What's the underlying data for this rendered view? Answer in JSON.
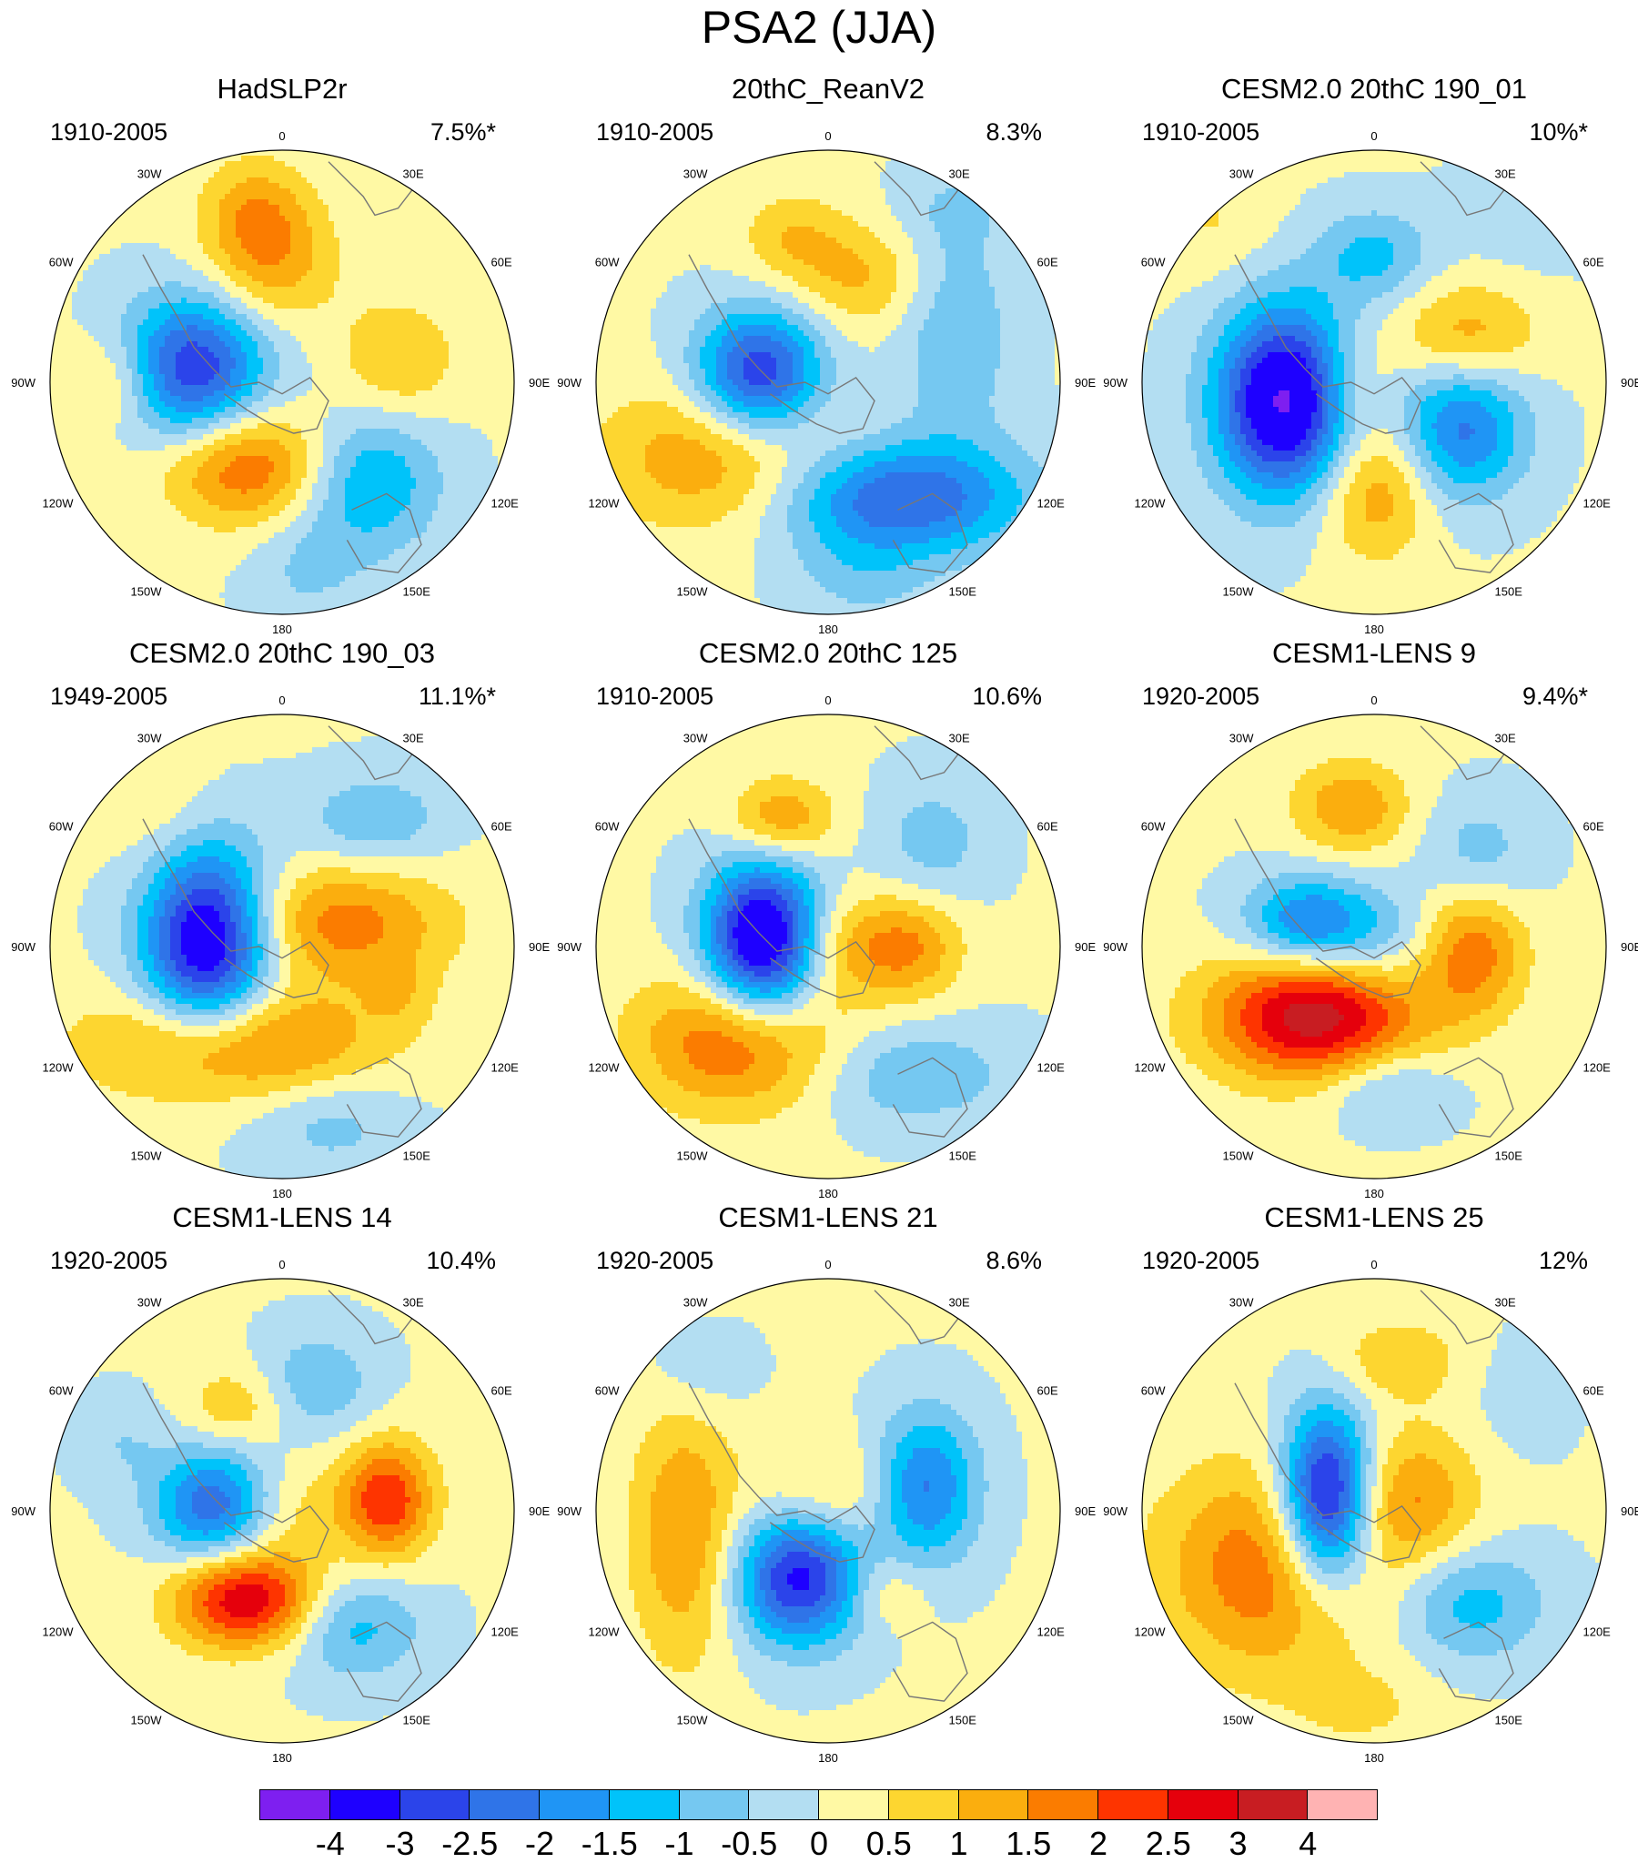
{
  "figure": {
    "title": "PSA2 (JJA)"
  },
  "longitude_labels": [
    "0",
    "30E",
    "60E",
    "90E",
    "120E",
    "150E",
    "180",
    "150W",
    "120W",
    "90W",
    "60W",
    "30W"
  ],
  "panels": [
    {
      "title": "HadSLP2r",
      "period": "1910-2005",
      "percent": "7.5%*",
      "blobs": [
        [
          -0.05,
          -0.52,
          0.55,
          0.55,
          1.3
        ],
        [
          -0.12,
          -0.75,
          0.45,
          0.45,
          1.0
        ],
        [
          -0.38,
          -0.06,
          0.62,
          0.62,
          -3.0
        ],
        [
          -0.15,
          0.36,
          0.7,
          0.5,
          2.0
        ],
        [
          0.38,
          0.43,
          0.6,
          0.6,
          -1.6
        ],
        [
          0.5,
          -0.1,
          0.5,
          0.5,
          1.0
        ],
        [
          -0.72,
          0.0,
          0.4,
          0.4,
          0.9
        ],
        [
          0.1,
          0.8,
          0.5,
          0.5,
          -0.6
        ]
      ]
    },
    {
      "title": "20thC_ReanV2",
      "period": "1910-2005",
      "percent": "8.3%",
      "blobs": [
        [
          -0.3,
          -0.03,
          0.55,
          0.55,
          -3.2
        ],
        [
          -0.45,
          0.32,
          1.0,
          0.65,
          1.6
        ],
        [
          0.3,
          0.5,
          1.1,
          0.5,
          -2.6
        ],
        [
          0.55,
          -0.2,
          0.5,
          0.9,
          -1.0
        ],
        [
          0.15,
          -0.45,
          0.55,
          0.45,
          1.0
        ],
        [
          -0.15,
          -0.62,
          0.45,
          0.4,
          0.9
        ],
        [
          0.15,
          0.85,
          0.6,
          0.4,
          -0.6
        ],
        [
          0.55,
          -0.75,
          0.5,
          0.4,
          -0.5
        ]
      ]
    },
    {
      "title": "CESM2.0 20thC 190_01",
      "period": "1910-2005",
      "percent": "10%*",
      "blobs": [
        [
          -0.38,
          0.08,
          0.6,
          0.8,
          -4.2
        ],
        [
          0.38,
          0.2,
          0.55,
          0.6,
          -2.2
        ],
        [
          0.0,
          -0.55,
          0.5,
          0.4,
          -1.2
        ],
        [
          0.4,
          -0.2,
          0.6,
          0.45,
          1.3
        ],
        [
          0.0,
          0.45,
          0.5,
          0.6,
          1.5
        ],
        [
          -0.1,
          0.0,
          0.35,
          0.45,
          0.9
        ],
        [
          0.7,
          -0.75,
          0.6,
          0.5,
          -0.5
        ],
        [
          -0.7,
          -0.7,
          0.5,
          0.5,
          0.5
        ]
      ]
    },
    {
      "title": "CESM2.0 20thC 190_03",
      "period": "1949-2005",
      "percent": "11.1%*",
      "blobs": [
        [
          -0.32,
          -0.02,
          0.55,
          0.8,
          -4.0
        ],
        [
          -0.2,
          0.42,
          1.2,
          0.5,
          2.0
        ],
        [
          0.25,
          -0.1,
          0.95,
          0.5,
          1.7
        ],
        [
          0.4,
          -0.55,
          0.6,
          0.4,
          -1.0
        ],
        [
          0.2,
          0.75,
          0.7,
          0.45,
          -0.8
        ],
        [
          -0.55,
          -0.6,
          0.5,
          0.5,
          0.5
        ],
        [
          0.5,
          0.2,
          0.3,
          0.3,
          0.6
        ]
      ]
    },
    {
      "title": "CESM2.0 20thC 125",
      "period": "1910-2005",
      "percent": "10.6%",
      "blobs": [
        [
          -0.28,
          -0.02,
          0.5,
          0.68,
          -4.2
        ],
        [
          -0.38,
          0.4,
          0.85,
          0.6,
          2.2
        ],
        [
          0.35,
          0.0,
          0.45,
          0.45,
          1.5
        ],
        [
          0.05,
          0.0,
          0.45,
          0.45,
          1.0
        ],
        [
          -0.2,
          -0.55,
          0.45,
          0.35,
          1.5
        ],
        [
          0.35,
          0.55,
          0.9,
          0.45,
          -1.0
        ],
        [
          0.45,
          -0.45,
          0.5,
          0.55,
          -0.8
        ]
      ]
    },
    {
      "title": "CESM1-LENS 9",
      "period": "1920-2005",
      "percent": "9.4%*",
      "blobs": [
        [
          -0.25,
          0.3,
          0.9,
          0.55,
          3.3
        ],
        [
          0.42,
          0.02,
          0.45,
          0.55,
          1.8
        ],
        [
          -0.28,
          -0.1,
          0.55,
          0.4,
          -2.2
        ],
        [
          -0.1,
          -0.6,
          0.5,
          0.4,
          1.4
        ],
        [
          0.05,
          0.0,
          0.55,
          0.45,
          -0.8
        ],
        [
          0.45,
          -0.4,
          0.5,
          0.5,
          -0.8
        ],
        [
          0.05,
          0.6,
          0.55,
          0.35,
          -1.0
        ]
      ]
    },
    {
      "title": "CESM1-LENS 14",
      "period": "1920-2005",
      "percent": "10.4%",
      "blobs": [
        [
          -0.3,
          -0.02,
          0.5,
          0.5,
          -2.4
        ],
        [
          -0.15,
          0.38,
          0.62,
          0.42,
          3.0
        ],
        [
          0.45,
          -0.05,
          0.4,
          0.5,
          2.4
        ],
        [
          0.3,
          0.5,
          0.6,
          0.45,
          -1.3
        ],
        [
          0.15,
          -0.55,
          0.5,
          0.45,
          -1.0
        ],
        [
          -0.2,
          -0.45,
          0.45,
          0.35,
          0.9
        ],
        [
          0.05,
          0.0,
          0.45,
          0.45,
          0.6
        ],
        [
          -0.7,
          -0.3,
          0.4,
          0.4,
          -0.5
        ]
      ]
    },
    {
      "title": "CESM1-LENS 21",
      "period": "1920-2005",
      "percent": "8.6%",
      "blobs": [
        [
          -0.12,
          0.28,
          0.55,
          0.58,
          -3.3
        ],
        [
          0.42,
          -0.1,
          0.45,
          0.65,
          -2.2
        ],
        [
          -0.62,
          0.1,
          0.45,
          1.1,
          1.5
        ],
        [
          0.0,
          -0.05,
          0.65,
          0.5,
          0.9
        ],
        [
          0.25,
          0.35,
          0.35,
          0.3,
          0.7
        ],
        [
          -0.55,
          -0.6,
          0.45,
          0.4,
          -0.5
        ]
      ]
    },
    {
      "title": "CESM1-LENS 25",
      "period": "1920-2005",
      "percent": "12%",
      "blobs": [
        [
          -0.2,
          -0.05,
          0.4,
          0.75,
          -4.2
        ],
        [
          -0.45,
          0.25,
          0.95,
          0.9,
          1.9
        ],
        [
          0.15,
          -0.05,
          0.6,
          0.6,
          1.4
        ],
        [
          0.42,
          0.4,
          0.65,
          0.5,
          -1.3
        ],
        [
          0.1,
          -0.65,
          0.55,
          0.35,
          0.9
        ],
        [
          -0.05,
          0.85,
          0.6,
          0.35,
          0.5
        ],
        [
          0.65,
          -0.5,
          0.4,
          0.5,
          -0.4
        ]
      ]
    }
  ],
  "colorbar": {
    "colors": [
      "#7E1FF0",
      "#1E00FF",
      "#2B44EA",
      "#2F74E8",
      "#1F95F5",
      "#00C3FA",
      "#75C8F1",
      "#B3DEF2",
      "#FFF9A4",
      "#FDD630",
      "#FBAE0E",
      "#FB7C00",
      "#FE3400",
      "#E5000C",
      "#C81D22",
      "#FFB3B3"
    ],
    "labels": [
      "-4",
      "-3",
      "-2.5",
      "-2",
      "-1.5",
      "-1",
      "-0.5",
      "0",
      "0.5",
      "1",
      "1.5",
      "2",
      "2.5",
      "3",
      "4"
    ],
    "thresholds": [
      -4,
      -3,
      -2.5,
      -2,
      -1.5,
      -1,
      -0.5,
      0,
      0.5,
      1,
      1.5,
      2,
      2.5,
      3,
      4
    ]
  }
}
